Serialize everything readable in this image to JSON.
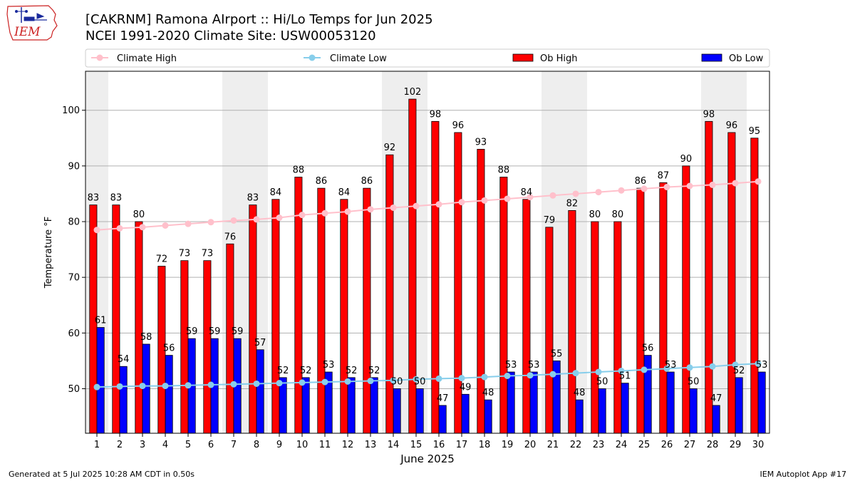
{
  "header": {
    "title_line1": "[CAKRNM] Ramona AIrport :: Hi/Lo Temps for Jun 2025",
    "title_line2": "NCEI 1991-2020 Climate Site: USW00053120",
    "logo_text": "IEM"
  },
  "footer": {
    "generated": "Generated at 5 Jul 2025 10:28 AM CDT in 0.50s",
    "app": "IEM Autoplot App #17"
  },
  "colors": {
    "ob_high": "#ff0000",
    "ob_low": "#0000ff",
    "climate_high": "#ffc0cb",
    "climate_low": "#87ceeb",
    "weekend_band": "#eeeeee",
    "logo_red": "#cc2222",
    "logo_blue": "#1a2a9c"
  },
  "chart_data": {
    "type": "bar",
    "xlabel": "June 2025",
    "ylabel": "Temperature °F",
    "ylim": [
      42,
      107
    ],
    "y_ticks": [
      50,
      60,
      70,
      80,
      90,
      100
    ],
    "grid": "horizontal",
    "legend_position": "top",
    "categories": [
      "1",
      "2",
      "3",
      "4",
      "5",
      "6",
      "7",
      "8",
      "9",
      "10",
      "11",
      "12",
      "13",
      "14",
      "15",
      "16",
      "17",
      "18",
      "19",
      "20",
      "21",
      "22",
      "23",
      "24",
      "25",
      "26",
      "27",
      "28",
      "29",
      "30"
    ],
    "shaded_days": [
      1,
      7,
      8,
      14,
      15,
      21,
      22,
      28,
      29
    ],
    "series": [
      {
        "name": "Climate High",
        "kind": "line",
        "values": [
          78.5,
          78.8,
          79.0,
          79.3,
          79.6,
          79.9,
          80.2,
          80.4,
          80.7,
          81.2,
          81.5,
          81.8,
          82.2,
          82.5,
          82.8,
          83.1,
          83.5,
          83.8,
          84.1,
          84.4,
          84.7,
          85.0,
          85.3,
          85.6,
          85.9,
          86.2,
          86.4,
          86.6,
          86.9,
          87.2
        ]
      },
      {
        "name": "Climate Low",
        "kind": "line",
        "values": [
          50.3,
          50.4,
          50.5,
          50.5,
          50.6,
          50.7,
          50.8,
          50.9,
          51.0,
          51.1,
          51.2,
          51.3,
          51.4,
          51.5,
          51.7,
          51.8,
          51.9,
          52.1,
          52.3,
          52.4,
          52.6,
          52.8,
          53.0,
          53.2,
          53.4,
          53.6,
          53.8,
          54.0,
          54.3,
          54.5
        ]
      },
      {
        "name": "Ob High",
        "kind": "bar",
        "values": [
          83,
          83,
          80,
          72,
          73,
          73,
          76,
          83,
          84,
          88,
          86,
          84,
          86,
          92,
          102,
          98,
          96,
          93,
          88,
          84,
          79,
          82,
          80,
          80,
          86,
          87,
          90,
          98,
          96,
          95
        ]
      },
      {
        "name": "Ob Low",
        "kind": "bar",
        "values": [
          61,
          54,
          58,
          56,
          59,
          59,
          59,
          57,
          52,
          52,
          53,
          52,
          52,
          50,
          50,
          47,
          49,
          48,
          53,
          53,
          55,
          48,
          50,
          51,
          56,
          53,
          50,
          47,
          52,
          53
        ]
      }
    ]
  }
}
